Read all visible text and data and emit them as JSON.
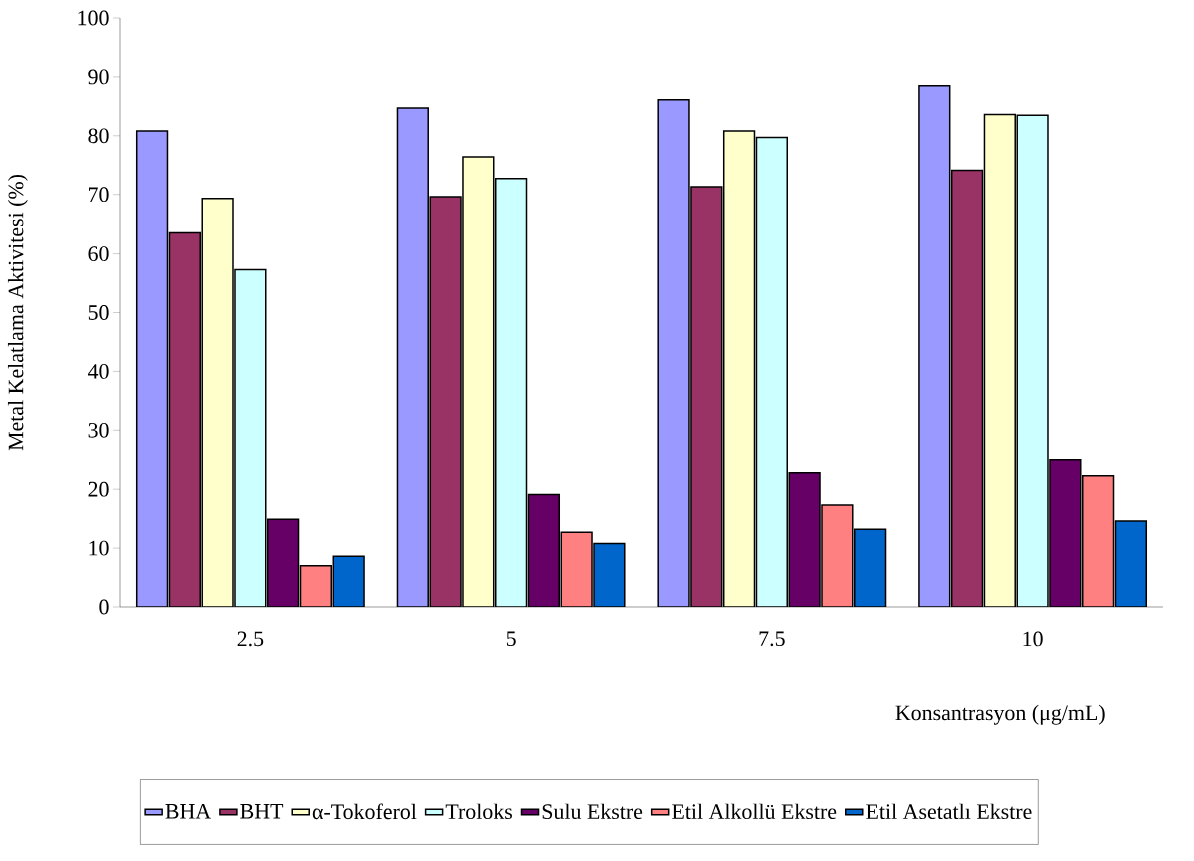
{
  "chart_data": {
    "type": "bar",
    "xlabel": "Konsantrasyon (μg/mL)",
    "ylabel": "Metal Kelatlama Aktivitesi (%)",
    "categories": [
      "2.5",
      "5",
      "7.5",
      "10"
    ],
    "series": [
      {
        "name": "BHA",
        "color": "#9999ff",
        "values": [
          80.8,
          84.7,
          86.1,
          88.5
        ]
      },
      {
        "name": "BHT",
        "color": "#993366",
        "values": [
          63.6,
          69.6,
          71.3,
          74.1
        ]
      },
      {
        "name": "α-Tokoferol",
        "color": "#ffffcc",
        "values": [
          69.3,
          76.4,
          80.8,
          83.6
        ]
      },
      {
        "name": "Troloks",
        "color": "#ccffff",
        "values": [
          57.3,
          72.7,
          79.7,
          83.5
        ]
      },
      {
        "name": "Sulu Ekstre",
        "color": "#660066",
        "values": [
          14.9,
          19.1,
          22.8,
          25.0
        ]
      },
      {
        "name": "Etil Alkollü Ekstre",
        "color": "#ff8080",
        "values": [
          7.0,
          12.7,
          17.3,
          22.3
        ]
      },
      {
        "name": "Etil Asetatlı Ekstre",
        "color": "#0066cc",
        "values": [
          8.6,
          10.8,
          13.2,
          14.6
        ]
      }
    ],
    "ylim": [
      0,
      100
    ],
    "yticks": [
      0,
      10,
      20,
      30,
      40,
      50,
      60,
      70,
      80,
      90,
      100
    ],
    "legend": "bottom"
  }
}
